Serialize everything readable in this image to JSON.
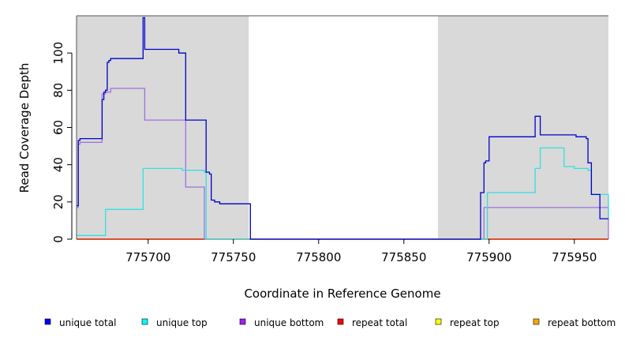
{
  "chart_data": {
    "type": "line",
    "step": true,
    "xlabel": "Coordinate in Reference Genome",
    "ylabel": "Read Coverage Depth",
    "xlim": [
      775658,
      775970
    ],
    "ylim": [
      0,
      120
    ],
    "x_ticks": [
      775700,
      775750,
      775800,
      775850,
      775900,
      775950
    ],
    "y_ticks": [
      0,
      20,
      40,
      60,
      80,
      100
    ],
    "grid": false,
    "shaded_regions": [
      {
        "from": 775658,
        "to": 775759,
        "color": "#d9d9d9"
      },
      {
        "from": 775870,
        "to": 775970,
        "color": "#d9d9d9"
      }
    ],
    "legend_position": "bottom",
    "series": [
      {
        "name": "unique total",
        "color": "#0000cc",
        "legend_color": "#0000ff",
        "x": [
          775658,
          775659,
          775660,
          775672,
          775673,
          775674,
          775675,
          775676,
          775677,
          775678,
          775697,
          775698,
          775713,
          775718,
          775722,
          775733,
          775734,
          775736,
          775737,
          775739,
          775742,
          775759,
          775760,
          775870,
          775895,
          775897,
          775898,
          775900,
          775926,
          775927,
          775930,
          775943,
          775951,
          775954,
          775957,
          775958,
          775960,
          775965,
          775970
        ],
        "y": [
          18,
          53,
          54,
          54,
          75,
          79,
          80,
          95,
          96,
          97,
          119,
          102,
          102,
          100,
          64,
          64,
          36,
          35,
          21,
          20,
          19,
          19,
          0,
          0,
          25,
          41,
          42,
          55,
          55,
          66,
          56,
          56,
          55,
          55,
          54,
          41,
          24,
          11,
          11
        ]
      },
      {
        "name": "unique top",
        "color": "#33e0e0",
        "legend_color": "#00ffff",
        "x": [
          775658,
          775659,
          775675,
          775697,
          775717,
          775720,
          775733,
          775734,
          775759,
          775760,
          775870,
          775895,
          775899,
          775927,
          775930,
          775944,
          775950,
          775955,
          775958,
          775960,
          775970
        ],
        "y": [
          2,
          2,
          16,
          38,
          38,
          37,
          36,
          0,
          0,
          0,
          0,
          0,
          25,
          38,
          49,
          39,
          38,
          38,
          37,
          24,
          11
        ]
      },
      {
        "name": "unique bottom",
        "color": "#a070e0",
        "legend_color": "#a020f0",
        "x": [
          775658,
          775659,
          775660,
          775672,
          775673,
          775675,
          775678,
          775697,
          775698,
          775722,
          775733,
          775896,
          775897,
          775959,
          775970
        ],
        "y": [
          17,
          51,
          52,
          52,
          78,
          79,
          81,
          81,
          64,
          28,
          0,
          0,
          17,
          17,
          0
        ]
      },
      {
        "name": "repeat total",
        "color": "#cc0000",
        "legend_color": "#ff0000",
        "x": [
          775658,
          775970
        ],
        "y": [
          0,
          0
        ]
      },
      {
        "name": "repeat top",
        "color": "#e0e000",
        "legend_color": "#ffff00",
        "x": [
          775658,
          775970
        ],
        "y": [
          0,
          0
        ]
      },
      {
        "name": "repeat bottom",
        "color": "#ffa500",
        "legend_color": "#ffa500",
        "x": [
          775658,
          775970
        ],
        "y": [
          0,
          0
        ]
      }
    ]
  }
}
